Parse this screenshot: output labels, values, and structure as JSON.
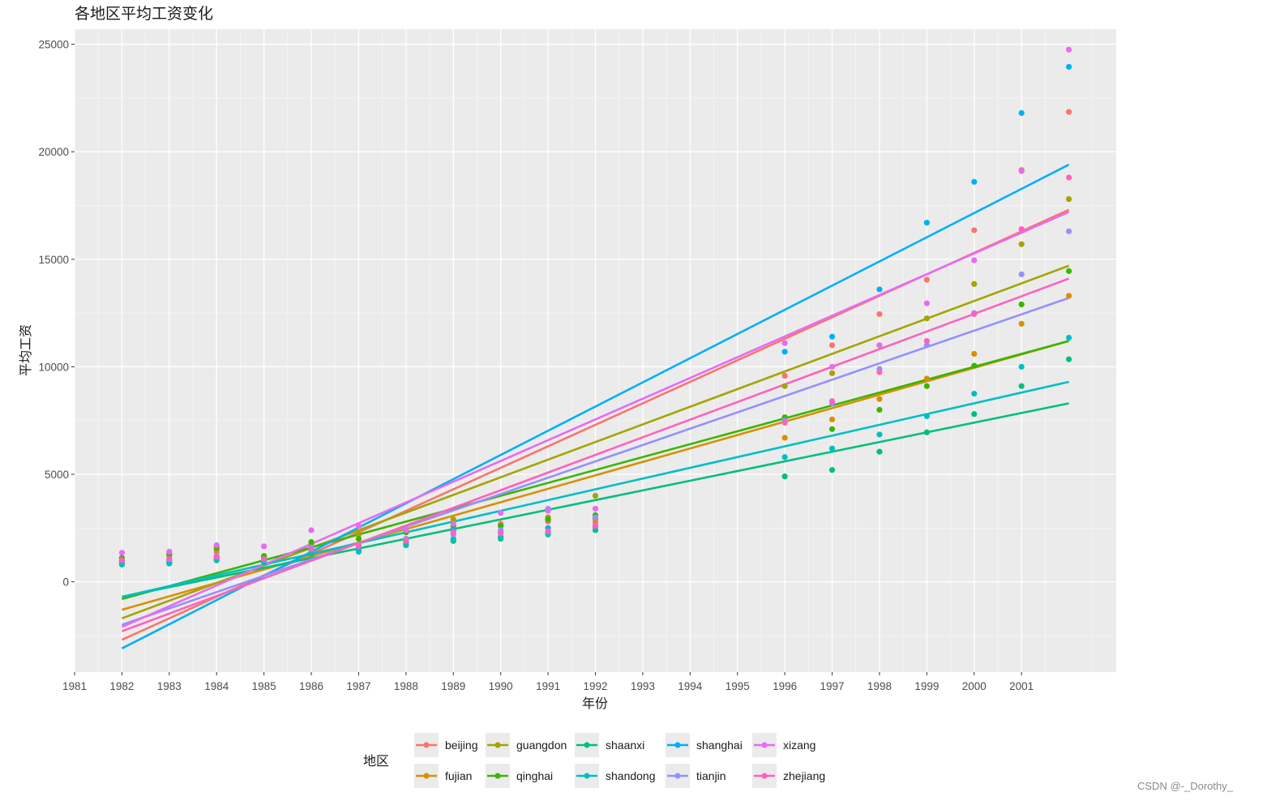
{
  "chart_data": {
    "type": "scatter",
    "title": "各地区平均工资变化",
    "xlabel": "年份",
    "ylabel": "平均工资",
    "xlim": [
      1981,
      2003
    ],
    "ylim": [
      -4200,
      25700
    ],
    "x_ticks": [
      "1981",
      "1982",
      "1983",
      "1984",
      "1985",
      "1986",
      "1987",
      "1988",
      "1989",
      "1990",
      "1991",
      "1992",
      "1993",
      "1994",
      "1995",
      "1996",
      "1997",
      "1998",
      "1999",
      "2000",
      "2001"
    ],
    "y_ticks": [
      "0",
      "5000",
      "10000",
      "15000",
      "20000",
      "25000"
    ],
    "y_tick_values": [
      0,
      5000,
      10000,
      15000,
      20000,
      25000
    ],
    "y_minor_values": [
      -2500,
      2500,
      7500,
      12500,
      17500,
      22500
    ],
    "grid": true,
    "legend_title": "地区",
    "legend_position": "bottom",
    "years": [
      1982,
      1983,
      1984,
      1985,
      1986,
      1987,
      1988,
      1989,
      1990,
      1991,
      1992,
      1996,
      1997,
      1998,
      1999,
      2000,
      2001,
      2002
    ],
    "series": [
      {
        "name": "beijing",
        "color": "#F8766D",
        "trend": [
          -2700,
          17300
        ],
        "points": [
          1120,
          1160,
          1380,
          1120,
          1700,
          1750,
          1900,
          2500,
          2700,
          2800,
          2750,
          9580,
          11000,
          12450,
          14050,
          16350,
          19150,
          21850
        ]
      },
      {
        "name": "fujian",
        "color": "#D89000",
        "trend": [
          -1300,
          11200
        ],
        "points": [
          900,
          920,
          1100,
          1000,
          1400,
          1500,
          1800,
          2300,
          2100,
          2300,
          2900,
          6700,
          7550,
          8500,
          9450,
          10600,
          12000,
          13300
        ]
      },
      {
        "name": "guangdon",
        "color": "#A3A500",
        "trend": [
          -1700,
          14700
        ],
        "points": [
          1050,
          1250,
          1500,
          1150,
          1750,
          2200,
          2300,
          2900,
          2600,
          3000,
          4000,
          9100,
          9700,
          11000,
          12250,
          13850,
          15700,
          17800
        ]
      },
      {
        "name": "qinghai",
        "color": "#39B600",
        "trend": [
          -800,
          11200
        ],
        "points": [
          1100,
          1300,
          1600,
          1200,
          1850,
          2000,
          2300,
          2600,
          2600,
          2900,
          3100,
          7650,
          7100,
          8000,
          9100,
          10050,
          12900,
          14450
        ]
      },
      {
        "name": "shaanxi",
        "color": "#00BF7D",
        "trend": [
          -700,
          8300
        ],
        "points": [
          800,
          850,
          1000,
          900,
          1300,
          1400,
          1700,
          1900,
          2000,
          2200,
          2400,
          4900,
          5200,
          6050,
          6950,
          7800,
          9100,
          10350
        ]
      },
      {
        "name": "shandong",
        "color": "#00BFC4",
        "trend": [
          -700,
          9300
        ],
        "points": [
          850,
          900,
          1050,
          950,
          1400,
          1450,
          1750,
          2000,
          2050,
          2250,
          2550,
          5800,
          6200,
          6850,
          7700,
          8750,
          10000,
          11350
        ]
      },
      {
        "name": "shanghai",
        "color": "#00B0F6",
        "trend": [
          -3100,
          19400
        ],
        "points": [
          950,
          1000,
          1150,
          1000,
          1500,
          1600,
          2000,
          2400,
          2300,
          2500,
          3000,
          10700,
          11400,
          13600,
          16700,
          18600,
          21800,
          23950
        ]
      },
      {
        "name": "tianjin",
        "color": "#9590FF",
        "trend": [
          -2000,
          13200
        ],
        "points": [
          1000,
          1050,
          1200,
          1050,
          1600,
          1700,
          2000,
          2200,
          2400,
          3400,
          3000,
          7500,
          8300,
          9900,
          11000,
          12500,
          14300,
          16300
        ]
      },
      {
        "name": "xizang",
        "color": "#E76BF3",
        "trend": [
          -2100,
          17200
        ],
        "points": [
          1350,
          1400,
          1700,
          1650,
          2400,
          2600,
          2400,
          2700,
          3200,
          3300,
          3400,
          11100,
          10000,
          11000,
          12950,
          14950,
          19100,
          24750
        ]
      },
      {
        "name": "zhejiang",
        "color": "#FF62BC",
        "trend": [
          -2300,
          14100
        ],
        "points": [
          1000,
          1050,
          1150,
          1050,
          1500,
          1650,
          1900,
          2300,
          2250,
          2350,
          2600,
          7400,
          8400,
          9750,
          11200,
          12450,
          16400,
          18800
        ]
      }
    ]
  },
  "watermark": "CSDN @-_Dorothy_"
}
